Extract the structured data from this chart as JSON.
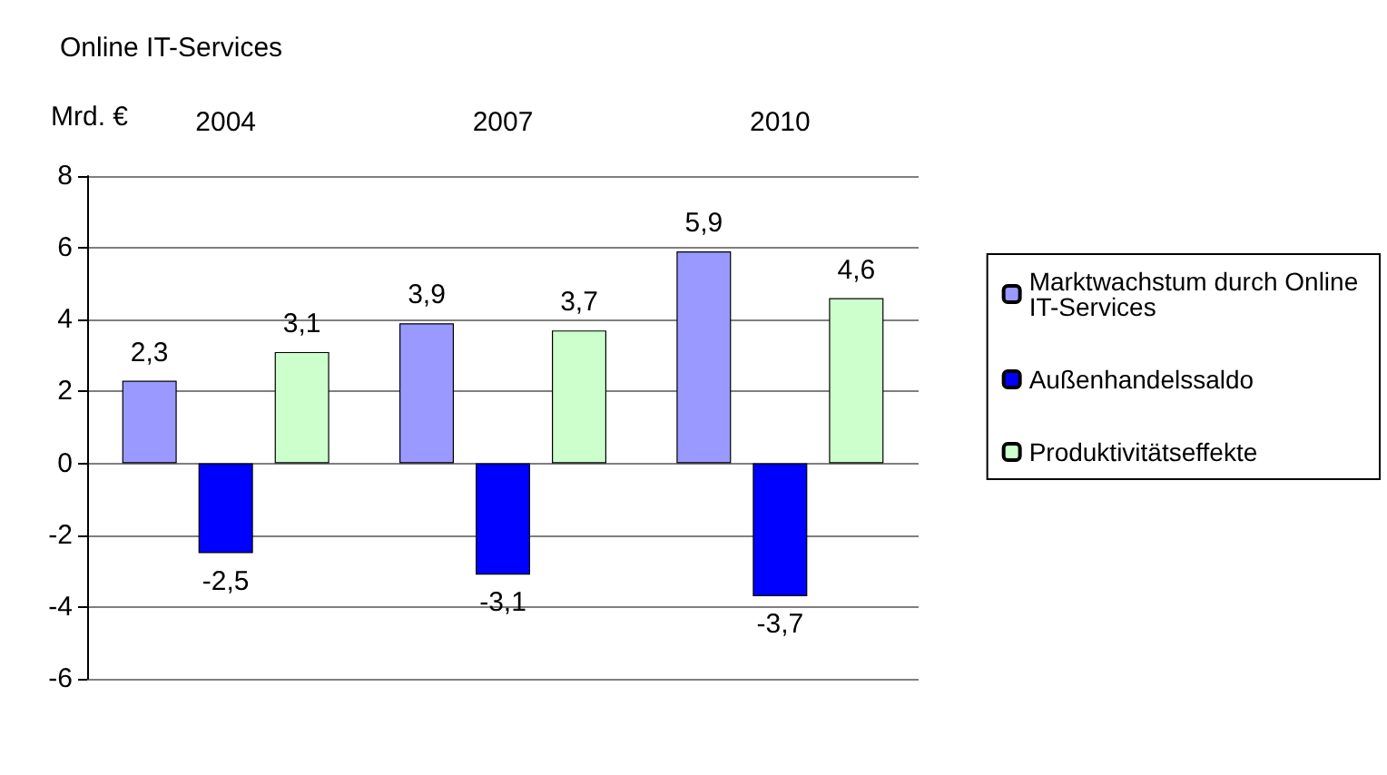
{
  "chart_data": {
    "type": "bar",
    "title": "Online IT-Services",
    "ylabel": "Mrd. €",
    "categories": [
      "2004",
      "2007",
      "2010"
    ],
    "series": [
      {
        "name": "Marktwachstum durch Online IT-Services",
        "color": "#9999ff",
        "values": [
          2.3,
          3.9,
          5.9
        ],
        "value_labels": [
          "2,3",
          "3,9",
          "5,9"
        ]
      },
      {
        "name": "Außenhandelssaldo",
        "color": "#0000ff",
        "values": [
          -2.5,
          -3.1,
          -3.7
        ],
        "value_labels": [
          "-2,5",
          "-3,1",
          "-3,7"
        ]
      },
      {
        "name": "Produktivitätseffekte",
        "color": "#ccffcc",
        "values": [
          3.1,
          3.7,
          4.6
        ],
        "value_labels": [
          "3,1",
          "3,7",
          "4,6"
        ]
      }
    ],
    "ylim": [
      -6,
      8
    ],
    "yticks": [
      -6,
      -4,
      -2,
      0,
      2,
      4,
      6,
      8
    ],
    "grid": "y",
    "legend": "right"
  }
}
